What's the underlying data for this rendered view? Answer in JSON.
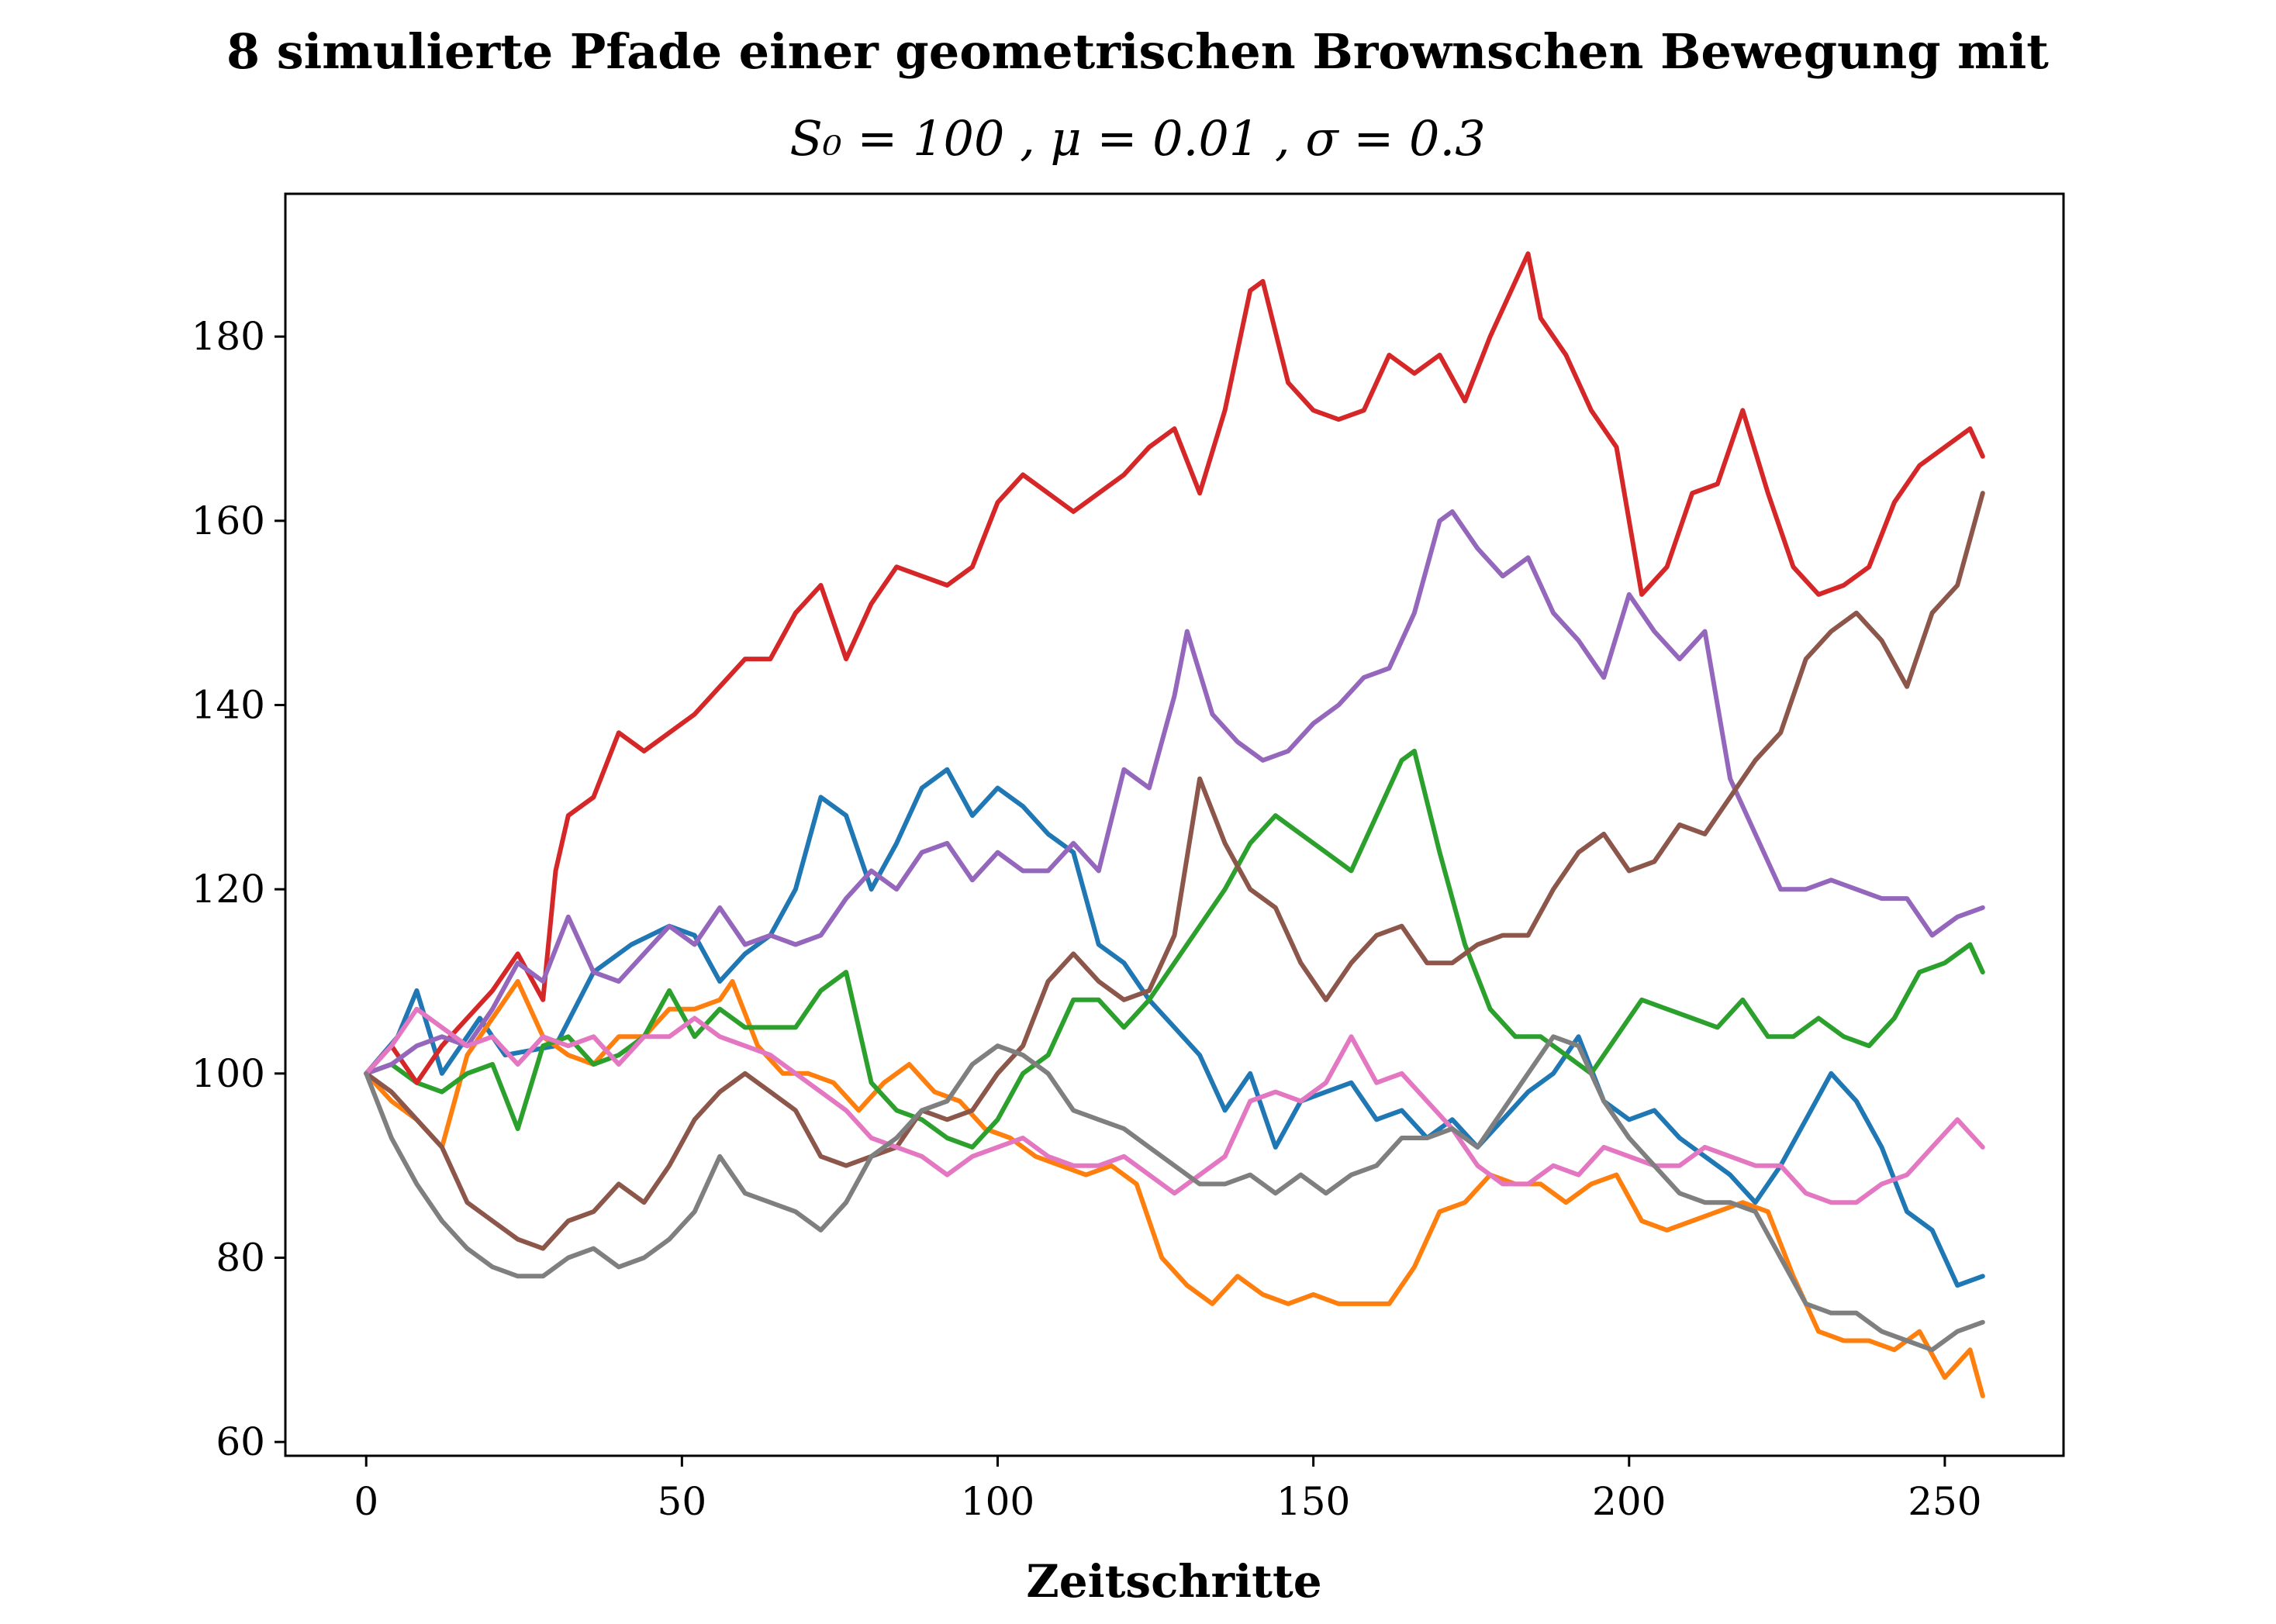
{
  "chart_data": {
    "type": "line",
    "title": "8 simulierte Pfade einer geometrischen Brownschen Bewegung mit",
    "subtitle": "S₀ = 100 ,  μ = 0.01 ,  σ = 0.3",
    "xlabel": "Zeitschritte",
    "ylabel": "",
    "xlim": [
      -12.8,
      268.8
    ],
    "ylim": [
      58.5,
      195.5
    ],
    "xticks": [
      0,
      50,
      100,
      150,
      200,
      250
    ],
    "yticks": [
      60,
      80,
      100,
      120,
      140,
      160,
      180
    ],
    "grid": false,
    "legend": "none",
    "series": [
      {
        "color": "#1f77b4",
        "x": [
          0,
          5,
          8,
          12,
          18,
          22,
          30,
          36,
          42,
          48,
          52,
          56,
          60,
          64,
          68,
          72,
          76,
          80,
          84,
          88,
          92,
          96,
          100,
          104,
          108,
          112,
          116,
          120,
          124,
          128,
          132,
          136,
          140,
          144,
          148,
          152,
          156,
          160,
          164,
          168,
          172,
          176,
          180,
          184,
          188,
          192,
          196,
          200,
          204,
          208,
          212,
          216,
          220,
          224,
          228,
          232,
          236,
          240,
          244,
          248,
          252,
          256
        ],
        "values": [
          100,
          104,
          109,
          100,
          106,
          102,
          103,
          111,
          114,
          116,
          115,
          110,
          113,
          115,
          120,
          130,
          128,
          120,
          125,
          131,
          133,
          128,
          131,
          129,
          126,
          124,
          114,
          112,
          108,
          105,
          102,
          96,
          100,
          92,
          97,
          98,
          99,
          95,
          96,
          93,
          95,
          92,
          95,
          98,
          100,
          104,
          97,
          95,
          96,
          93,
          91,
          89,
          86,
          90,
          95,
          100,
          97,
          92,
          85,
          83,
          77,
          78
        ]
      },
      {
        "color": "#ff7f0e",
        "x": [
          0,
          4,
          8,
          12,
          16,
          20,
          24,
          28,
          32,
          36,
          40,
          44,
          48,
          52,
          56,
          58,
          62,
          66,
          70,
          74,
          78,
          82,
          86,
          90,
          94,
          98,
          102,
          106,
          110,
          114,
          118,
          122,
          126,
          130,
          134,
          138,
          142,
          146,
          150,
          154,
          158,
          162,
          166,
          170,
          174,
          178,
          182,
          186,
          190,
          194,
          198,
          202,
          206,
          210,
          214,
          218,
          222,
          226,
          230,
          234,
          238,
          242,
          246,
          250,
          254,
          256
        ],
        "values": [
          100,
          97,
          95,
          92,
          102,
          106,
          110,
          104,
          102,
          101,
          104,
          104,
          107,
          107,
          108,
          110,
          103,
          100,
          100,
          99,
          96,
          99,
          101,
          98,
          97,
          94,
          93,
          91,
          90,
          89,
          90,
          88,
          80,
          77,
          75,
          78,
          76,
          75,
          76,
          75,
          75,
          75,
          79,
          85,
          86,
          89,
          88,
          88,
          86,
          88,
          89,
          84,
          83,
          84,
          85,
          86,
          85,
          78,
          72,
          71,
          71,
          70,
          72,
          67,
          70,
          65
        ]
      },
      {
        "color": "#2ca02c",
        "x": [
          0,
          4,
          8,
          12,
          16,
          20,
          24,
          28,
          32,
          36,
          40,
          44,
          48,
          52,
          56,
          60,
          64,
          68,
          72,
          76,
          80,
          84,
          88,
          92,
          96,
          100,
          104,
          108,
          112,
          116,
          120,
          124,
          128,
          132,
          136,
          140,
          144,
          148,
          152,
          156,
          160,
          164,
          166,
          170,
          174,
          178,
          182,
          186,
          190,
          194,
          198,
          202,
          206,
          210,
          214,
          218,
          222,
          226,
          230,
          234,
          238,
          242,
          246,
          250,
          254,
          256
        ],
        "values": [
          100,
          101,
          99,
          98,
          100,
          101,
          94,
          103,
          104,
          101,
          102,
          104,
          109,
          104,
          107,
          105,
          105,
          105,
          109,
          111,
          99,
          96,
          95,
          93,
          92,
          95,
          100,
          102,
          108,
          108,
          105,
          108,
          112,
          116,
          120,
          125,
          128,
          126,
          124,
          122,
          128,
          134,
          135,
          124,
          114,
          107,
          104,
          104,
          102,
          100,
          104,
          108,
          107,
          106,
          105,
          108,
          104,
          104,
          106,
          104,
          103,
          106,
          111,
          112,
          114,
          111
        ]
      },
      {
        "color": "#d62728",
        "x": [
          0,
          4,
          8,
          12,
          16,
          20,
          24,
          28,
          30,
          32,
          36,
          40,
          44,
          48,
          52,
          56,
          60,
          64,
          68,
          72,
          76,
          80,
          84,
          88,
          92,
          96,
          100,
          104,
          108,
          112,
          116,
          120,
          124,
          128,
          132,
          136,
          140,
          142,
          146,
          150,
          154,
          158,
          162,
          166,
          170,
          174,
          178,
          182,
          184,
          186,
          190,
          194,
          198,
          202,
          206,
          210,
          214,
          218,
          222,
          226,
          230,
          234,
          238,
          242,
          246,
          250,
          254,
          256
        ],
        "values": [
          100,
          103,
          99,
          103,
          106,
          109,
          113,
          108,
          122,
          128,
          130,
          137,
          135,
          137,
          139,
          142,
          145,
          145,
          150,
          153,
          145,
          151,
          155,
          154,
          153,
          155,
          162,
          165,
          163,
          161,
          163,
          165,
          168,
          170,
          163,
          172,
          185,
          186,
          175,
          172,
          171,
          172,
          178,
          176,
          178,
          173,
          180,
          186,
          189,
          182,
          178,
          172,
          168,
          152,
          155,
          163,
          164,
          172,
          163,
          155,
          152,
          153,
          155,
          162,
          166,
          168,
          170,
          167
        ]
      },
      {
        "color": "#9467bd",
        "x": [
          0,
          4,
          8,
          12,
          16,
          20,
          24,
          28,
          32,
          36,
          40,
          44,
          48,
          52,
          56,
          60,
          64,
          68,
          72,
          76,
          80,
          84,
          88,
          92,
          96,
          100,
          104,
          108,
          112,
          116,
          120,
          124,
          128,
          130,
          134,
          138,
          142,
          146,
          150,
          154,
          158,
          162,
          166,
          170,
          172,
          176,
          180,
          184,
          188,
          192,
          196,
          200,
          204,
          208,
          212,
          216,
          220,
          224,
          228,
          232,
          236,
          240,
          244,
          248,
          252,
          256
        ],
        "values": [
          100,
          101,
          103,
          104,
          103,
          107,
          112,
          110,
          117,
          111,
          110,
          113,
          116,
          114,
          118,
          114,
          115,
          114,
          115,
          119,
          122,
          120,
          124,
          125,
          121,
          124,
          122,
          122,
          125,
          122,
          133,
          131,
          141,
          148,
          139,
          136,
          134,
          135,
          138,
          140,
          143,
          144,
          150,
          160,
          161,
          157,
          154,
          156,
          150,
          147,
          143,
          152,
          148,
          145,
          148,
          132,
          126,
          120,
          120,
          121,
          120,
          119,
          119,
          115,
          117,
          118
        ]
      },
      {
        "color": "#8c564b",
        "x": [
          0,
          4,
          8,
          12,
          16,
          20,
          24,
          28,
          32,
          36,
          40,
          44,
          48,
          52,
          56,
          60,
          64,
          68,
          72,
          76,
          80,
          84,
          88,
          92,
          96,
          100,
          104,
          108,
          112,
          116,
          120,
          124,
          128,
          132,
          136,
          140,
          144,
          148,
          152,
          156,
          160,
          164,
          168,
          172,
          176,
          180,
          184,
          188,
          192,
          196,
          200,
          204,
          208,
          212,
          216,
          220,
          224,
          228,
          232,
          236,
          240,
          244,
          248,
          252,
          256
        ],
        "values": [
          100,
          98,
          95,
          92,
          86,
          84,
          82,
          81,
          84,
          85,
          88,
          86,
          90,
          95,
          98,
          100,
          98,
          96,
          91,
          90,
          91,
          92,
          96,
          95,
          96,
          100,
          103,
          110,
          113,
          110,
          108,
          109,
          115,
          132,
          125,
          120,
          118,
          112,
          108,
          112,
          115,
          116,
          112,
          112,
          114,
          115,
          115,
          120,
          124,
          126,
          122,
          123,
          127,
          126,
          130,
          134,
          137,
          145,
          148,
          150,
          147,
          142,
          150,
          153,
          163
        ]
      },
      {
        "color": "#e377c2",
        "x": [
          0,
          4,
          8,
          12,
          16,
          20,
          24,
          28,
          32,
          36,
          40,
          44,
          48,
          52,
          56,
          60,
          64,
          68,
          72,
          76,
          80,
          84,
          88,
          92,
          96,
          100,
          104,
          108,
          112,
          116,
          120,
          124,
          128,
          132,
          136,
          140,
          144,
          148,
          152,
          156,
          160,
          164,
          168,
          172,
          176,
          180,
          184,
          188,
          192,
          196,
          200,
          204,
          208,
          212,
          216,
          220,
          224,
          228,
          232,
          236,
          240,
          244,
          248,
          252,
          256
        ],
        "values": [
          100,
          103,
          107,
          105,
          103,
          104,
          101,
          104,
          103,
          104,
          101,
          104,
          104,
          106,
          104,
          103,
          102,
          100,
          98,
          96,
          93,
          92,
          91,
          89,
          91,
          92,
          93,
          91,
          90,
          90,
          91,
          89,
          87,
          89,
          91,
          97,
          98,
          97,
          99,
          104,
          99,
          100,
          97,
          94,
          90,
          88,
          88,
          90,
          89,
          92,
          91,
          90,
          90,
          92,
          91,
          90,
          90,
          87,
          86,
          86,
          88,
          89,
          92,
          95,
          92
        ]
      },
      {
        "color": "#7f7f7f",
        "x": [
          0,
          4,
          8,
          12,
          16,
          20,
          24,
          28,
          32,
          36,
          40,
          44,
          48,
          52,
          56,
          60,
          64,
          68,
          72,
          76,
          80,
          84,
          88,
          92,
          96,
          100,
          104,
          108,
          112,
          116,
          120,
          124,
          128,
          132,
          136,
          140,
          144,
          148,
          152,
          156,
          160,
          164,
          168,
          172,
          176,
          180,
          184,
          188,
          192,
          196,
          200,
          204,
          208,
          212,
          216,
          220,
          224,
          228,
          232,
          236,
          240,
          244,
          248,
          252,
          256
        ],
        "values": [
          100,
          93,
          88,
          84,
          81,
          79,
          78,
          78,
          80,
          81,
          79,
          80,
          82,
          85,
          91,
          87,
          86,
          85,
          83,
          86,
          91,
          93,
          96,
          97,
          101,
          103,
          102,
          100,
          96,
          95,
          94,
          92,
          90,
          88,
          88,
          89,
          87,
          89,
          87,
          89,
          90,
          93,
          93,
          94,
          92,
          96,
          100,
          104,
          103,
          97,
          93,
          90,
          87,
          86,
          86,
          85,
          80,
          75,
          74,
          74,
          72,
          71,
          70,
          72,
          73
        ]
      }
    ]
  }
}
